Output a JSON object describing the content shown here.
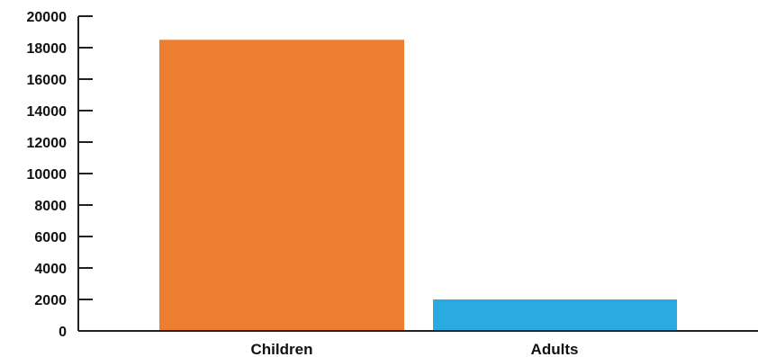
{
  "chart_data": {
    "type": "bar",
    "title": "",
    "xlabel": "",
    "ylabel": "",
    "categories": [
      "Children",
      "Adults"
    ],
    "values": [
      18500,
      2000
    ],
    "bar_colors": [
      "#ED7D31",
      "#29ABE2"
    ],
    "ylim": [
      0,
      20000
    ],
    "yticks": [
      0,
      2000,
      4000,
      6000,
      8000,
      10000,
      12000,
      14000,
      16000,
      18000,
      20000
    ],
    "grid": false,
    "legend": "none"
  }
}
